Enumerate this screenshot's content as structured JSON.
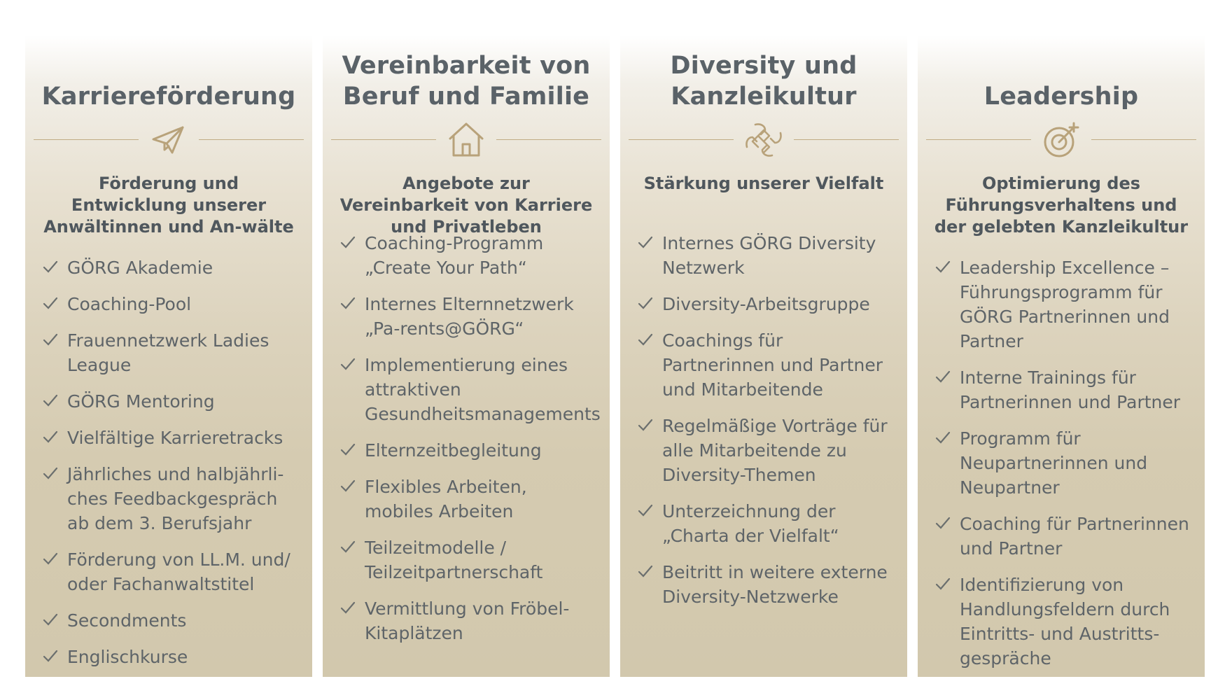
{
  "columns": [
    {
      "title": "Karriereförderung",
      "icon": "paper-plane-icon",
      "subtitle": "Förderung und Entwicklung unserer Anwältinnen und An-wälte",
      "items": [
        "GÖRG Akademie",
        "Coaching-Pool",
        "Frauennetzwerk Ladies League",
        "GÖRG Mentoring",
        "Vielfältige Karrieretracks",
        "Jährliches und halbjährli-ches Feedbackgespräch ab dem 3. Berufsjahr",
        "Förderung von LL.M. und/ oder Fachanwaltstitel",
        "Secondments",
        "Englischkurse"
      ]
    },
    {
      "title": "Vereinbarkeit von Beruf und Familie",
      "icon": "house-icon",
      "subtitle": "Angebote zur Vereinbarkeit von Karriere und Privatleben",
      "items": [
        "Coaching-Programm „Create Your Path“",
        "Internes Elternnetzwerk „Pa-rents@GÖRG“",
        "Implementierung eines attraktiven Gesundheitsmanagements",
        "Elternzeitbegleitung",
        "Flexibles Arbeiten, mobiles Arbeiten",
        "Teilzeitmodelle / Teilzeitpartnerschaft",
        "Vermittlung von Fröbel-Kitaplätzen"
      ]
    },
    {
      "title": "Diversity und Kanzleikultur",
      "icon": "joined-hands-icon",
      "subtitle": "Stärkung unserer Vielfalt",
      "items": [
        "Internes GÖRG Diversity Netzwerk",
        "Diversity-Arbeitsgruppe",
        "Coachings für Partnerinnen und Partner und Mitarbeitende",
        "Regelmäßige Vorträge für alle Mitarbeitende zu Diversity-Themen",
        "Unterzeichnung der „Charta der Vielfalt“",
        "Beitritt in weitere externe Diversity-Netzwerke"
      ]
    },
    {
      "title": "Leadership",
      "icon": "target-icon",
      "subtitle": "Optimierung des Führungsverhaltens und der gelebten Kanzleikultur",
      "items": [
        "Leadership Excellence – Führungsprogramm für GÖRG Partnerinnen und Partner",
        "Interne Trainings für Partnerinnen und Partner",
        "Programm für Neupartnerinnen und Neupartner",
        "Coaching für Partnerinnen und Partner",
        "Identifizierung von Handlungsfeldern durch Eintritts- und Austritts-gespräche"
      ]
    }
  ],
  "colors": {
    "accent": "#b8a27a",
    "title": "#5a6268",
    "text": "#5e6468"
  }
}
